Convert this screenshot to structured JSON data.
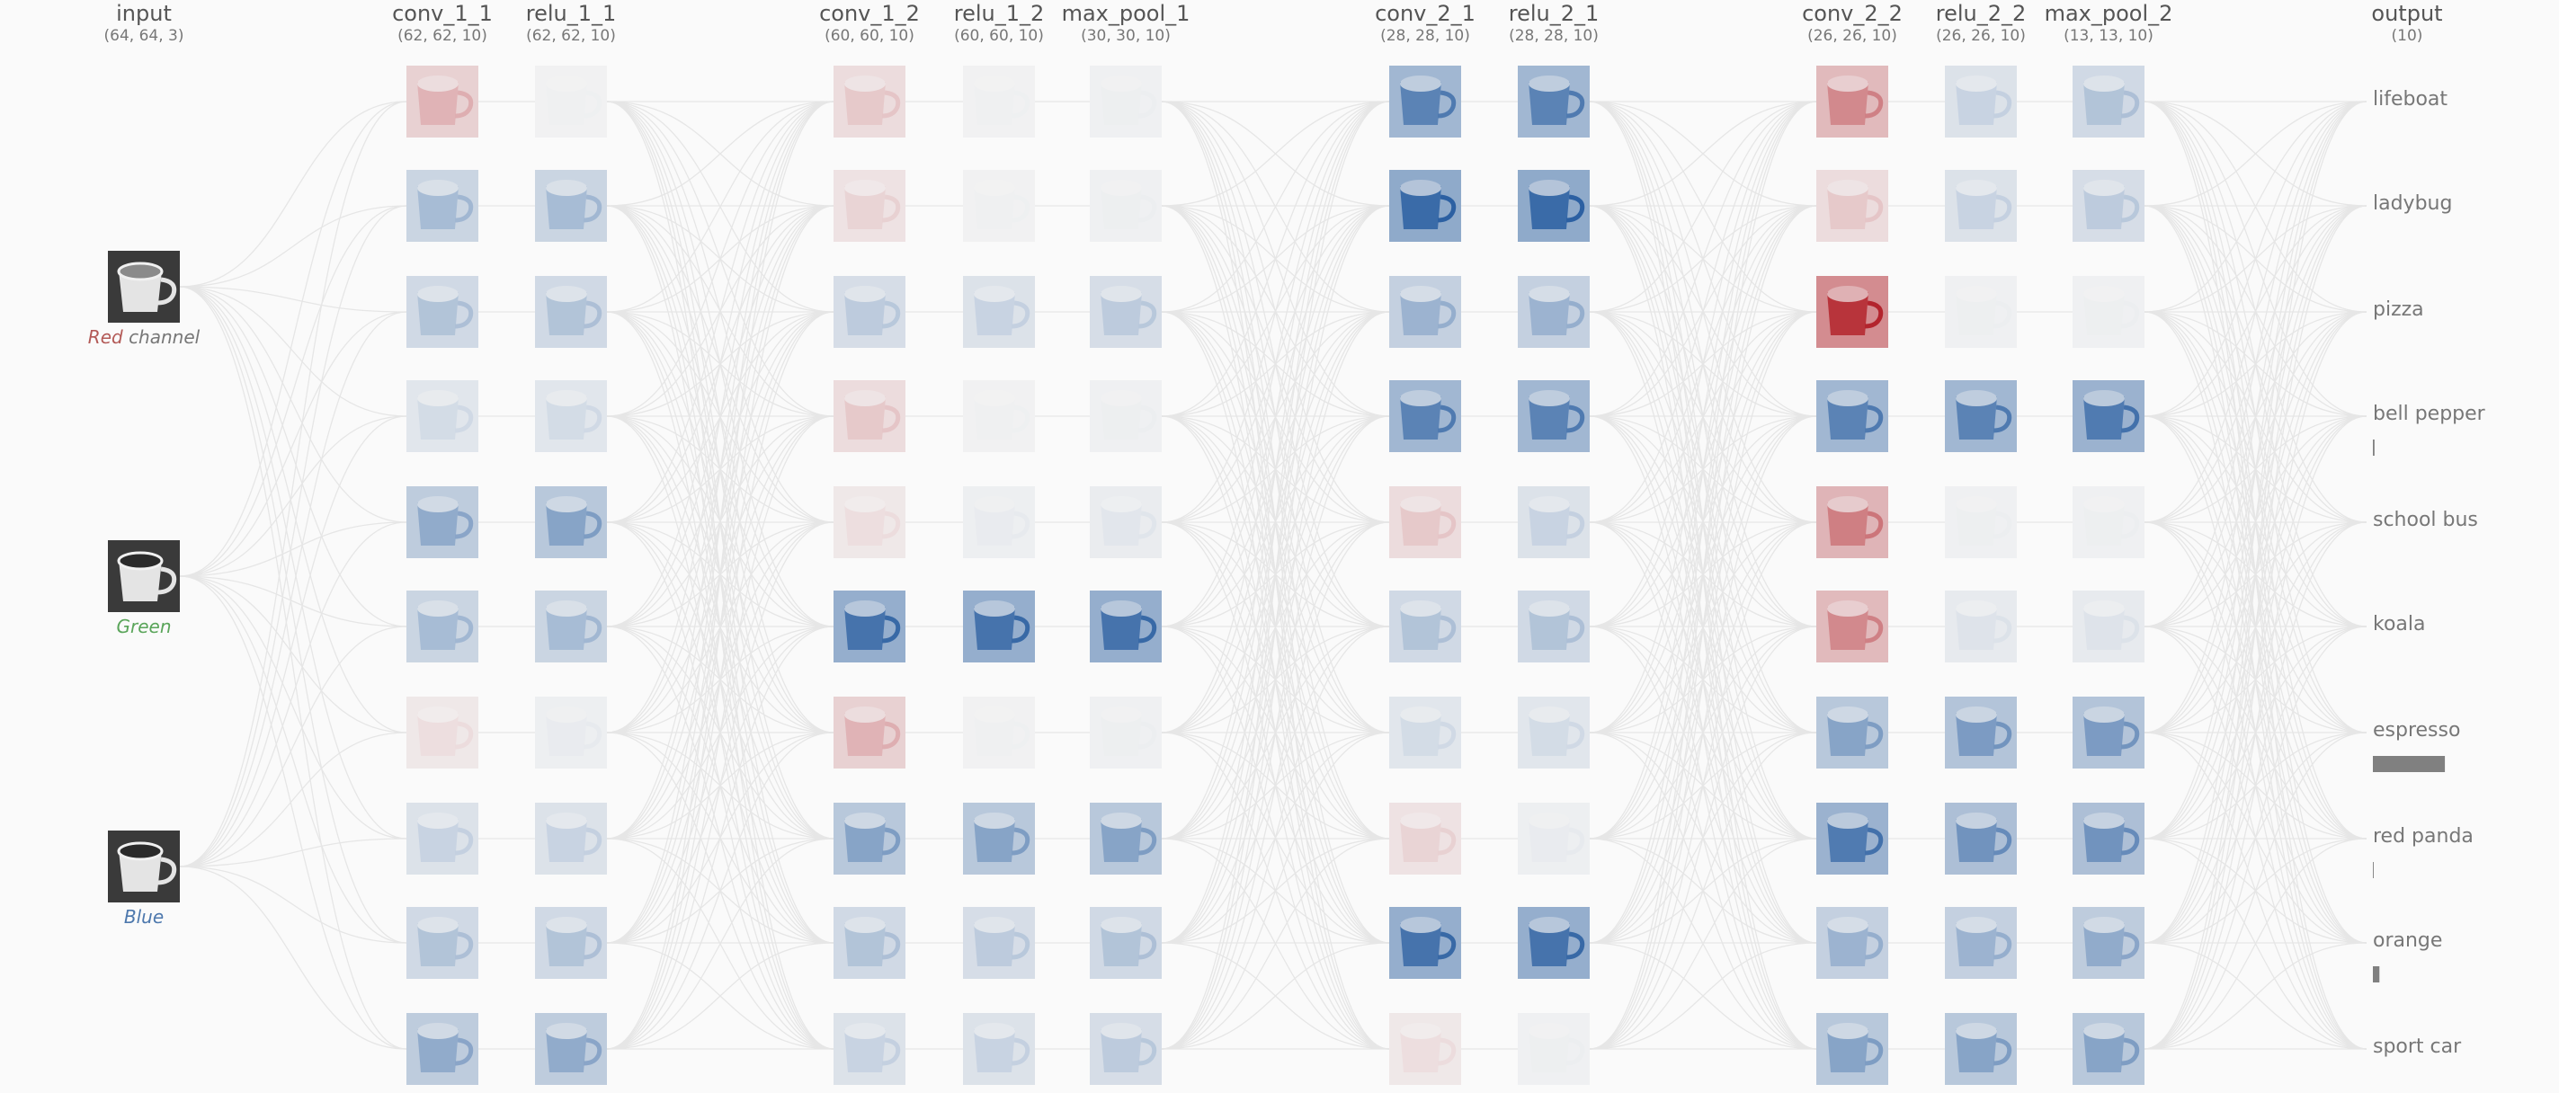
{
  "layers": [
    {
      "name": "input",
      "shape": "(64, 64, 3)"
    },
    {
      "name": "conv_1_1",
      "shape": "(62, 62, 10)"
    },
    {
      "name": "relu_1_1",
      "shape": "(62, 62, 10)"
    },
    {
      "name": "conv_1_2",
      "shape": "(60, 60, 10)"
    },
    {
      "name": "relu_1_2",
      "shape": "(60, 60, 10)"
    },
    {
      "name": "max_pool_1",
      "shape": "(30, 30, 10)"
    },
    {
      "name": "conv_2_1",
      "shape": "(28, 28, 10)"
    },
    {
      "name": "relu_2_1",
      "shape": "(28, 28, 10)"
    },
    {
      "name": "conv_2_2",
      "shape": "(26, 26, 10)"
    },
    {
      "name": "relu_2_2",
      "shape": "(26, 26, 10)"
    },
    {
      "name": "max_pool_2",
      "shape": "(13, 13, 10)"
    },
    {
      "name": "output",
      "shape": "(10)"
    }
  ],
  "input_channels": {
    "names": [
      "Red",
      "Green",
      "Blue"
    ],
    "suffix": "channel"
  },
  "output": {
    "classes": [
      "lifeboat",
      "ladybug",
      "pizza",
      "bell pepper",
      "school bus",
      "koala",
      "espresso",
      "red panda",
      "orange",
      "sport car"
    ],
    "scores": [
      0,
      0,
      0,
      0.02,
      0,
      0,
      0.88,
      0.01,
      0.08,
      0
    ]
  }
}
